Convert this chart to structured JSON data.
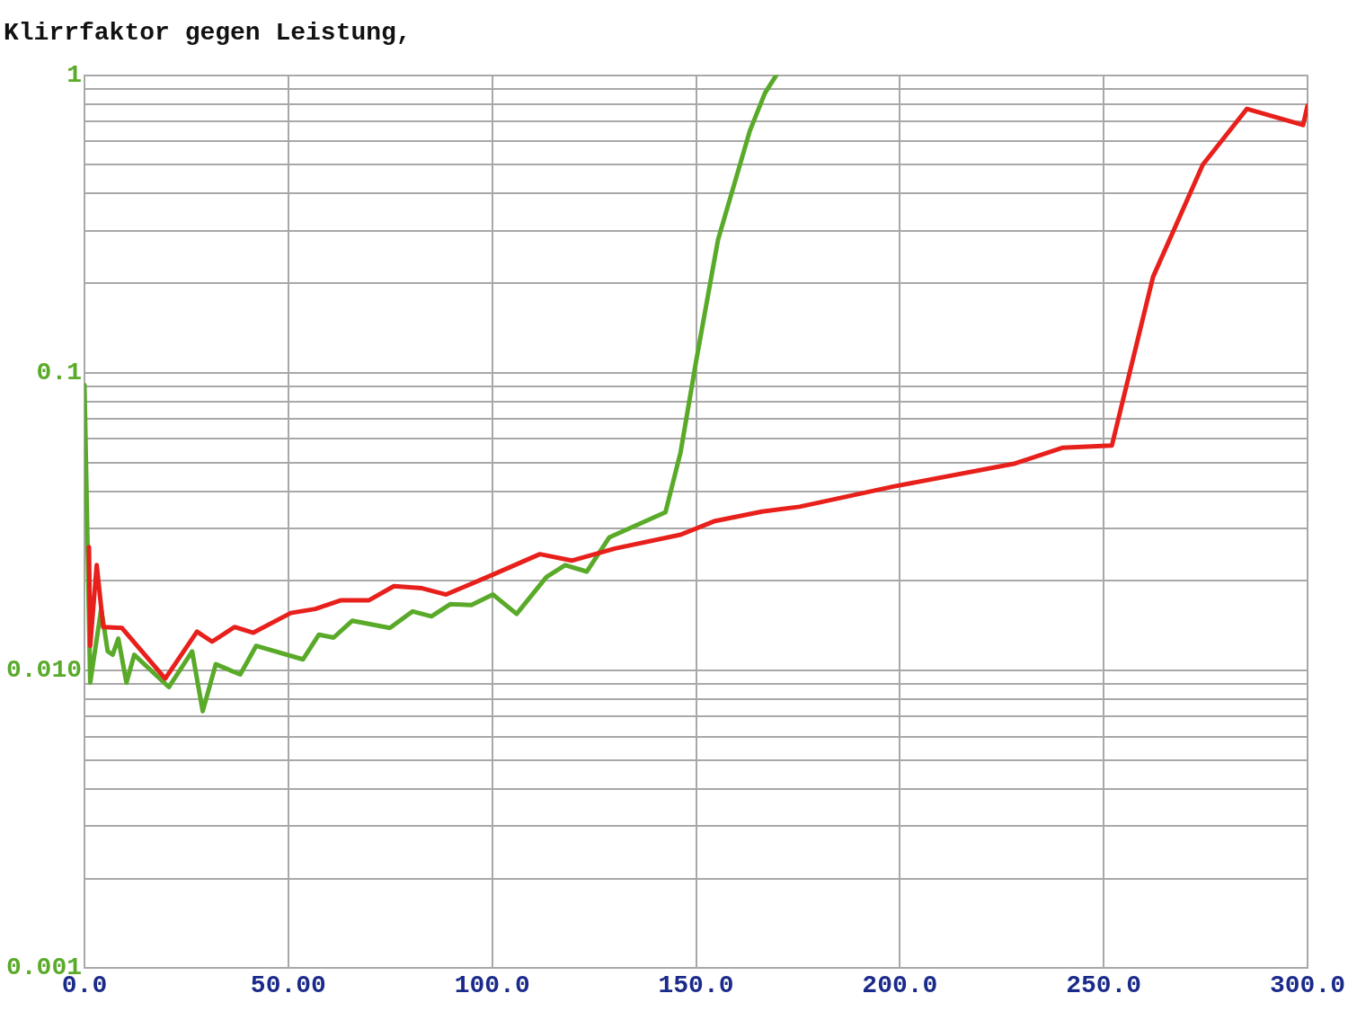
{
  "chart_data": {
    "type": "line",
    "title": "Klirrfaktor gegen Leistung,",
    "log": "y",
    "grid": true,
    "legend": false,
    "marker": "none",
    "line_style": "solid",
    "xlim": [
      0,
      300
    ],
    "xticks": [
      {
        "value": 0,
        "label": "0.0"
      },
      {
        "value": 50,
        "label": "50.00"
      },
      {
        "value": 100,
        "label": "100.0"
      },
      {
        "value": 150,
        "label": "150.0"
      },
      {
        "value": 200,
        "label": "200.0"
      },
      {
        "value": 250,
        "label": "250.0"
      },
      {
        "value": 300,
        "label": "300.0"
      }
    ],
    "ylim": [
      0.001,
      1
    ],
    "yticks": [
      {
        "value": 0.001,
        "label": "0.001"
      },
      {
        "value": 0.002,
        "label": null
      },
      {
        "value": 0.003,
        "label": null
      },
      {
        "value": 0.004,
        "label": null
      },
      {
        "value": 0.005,
        "label": null
      },
      {
        "value": 0.006,
        "label": null
      },
      {
        "value": 0.007,
        "label": null
      },
      {
        "value": 0.008,
        "label": null
      },
      {
        "value": 0.009,
        "label": null
      },
      {
        "value": 0.01,
        "label": "0.010"
      },
      {
        "value": 0.02,
        "label": null
      },
      {
        "value": 0.03,
        "label": null
      },
      {
        "value": 0.04,
        "label": null
      },
      {
        "value": 0.05,
        "label": null
      },
      {
        "value": 0.06,
        "label": null
      },
      {
        "value": 0.07,
        "label": null
      },
      {
        "value": 0.08,
        "label": null
      },
      {
        "value": 0.09,
        "label": null
      },
      {
        "value": 0.1,
        "label": "0.1"
      },
      {
        "value": 0.2,
        "label": null
      },
      {
        "value": 0.3,
        "label": null
      },
      {
        "value": 0.4,
        "label": null
      },
      {
        "value": 0.5,
        "label": null
      },
      {
        "value": 0.6,
        "label": null
      },
      {
        "value": 0.7,
        "label": null
      },
      {
        "value": 0.8,
        "label": null
      },
      {
        "value": 0.9,
        "label": null
      },
      {
        "value": 1,
        "label": "1"
      }
    ],
    "series": [
      {
        "color": "#e8201c",
        "x": [
          1.1,
          1.4,
          3.0,
          4.6,
          9.2,
          19.8,
          27.6,
          31.3,
          36.8,
          41.4,
          50.6,
          56.6,
          62.8,
          69.7,
          75.9,
          82.8,
          88.7,
          100.2,
          111.7,
          119.5,
          130.1,
          146.2,
          154.7,
          166.2,
          175.4,
          198.4,
          228.3,
          239.8,
          252.0,
          262.1,
          274.3,
          285.1,
          298.9,
          300
        ],
        "values": [
          0.026,
          0.0121,
          0.0226,
          0.014,
          0.0139,
          0.0094,
          0.0135,
          0.0125,
          0.014,
          0.0134,
          0.0156,
          0.0161,
          0.0172,
          0.0172,
          0.0192,
          0.0189,
          0.018,
          0.021,
          0.0246,
          0.0234,
          0.0257,
          0.0286,
          0.0318,
          0.0342,
          0.0355,
          0.0415,
          0.0496,
          0.056,
          0.057,
          0.21,
          0.5,
          0.77,
          0.68,
          0.79
        ]
      },
      {
        "color": "#5aaa2a",
        "x": [
          0,
          1.4,
          4.1,
          5.7,
          6.9,
          8.3,
          10.3,
          12.2,
          20.7,
          26.4,
          29.0,
          32.2,
          38.2,
          42.1,
          53.6,
          57.5,
          61.1,
          65.7,
          74.9,
          80.5,
          85.1,
          89.7,
          94.9,
          100.2,
          106.0,
          113.3,
          117.9,
          123.2,
          128.7,
          142.5,
          146.2,
          150.1,
          155.4,
          163.2,
          166.9,
          169.7
        ],
        "values": [
          0.091,
          0.0091,
          0.0161,
          0.0116,
          0.0113,
          0.0128,
          0.0091,
          0.0113,
          0.0088,
          0.0116,
          0.0073,
          0.0105,
          0.0097,
          0.0121,
          0.0109,
          0.0132,
          0.0129,
          0.0147,
          0.0139,
          0.0158,
          0.0152,
          0.0167,
          0.0166,
          0.018,
          0.0155,
          0.0206,
          0.0226,
          0.0215,
          0.028,
          0.034,
          0.054,
          0.111,
          0.28,
          0.65,
          0.87,
          1.0
        ]
      }
    ]
  }
}
